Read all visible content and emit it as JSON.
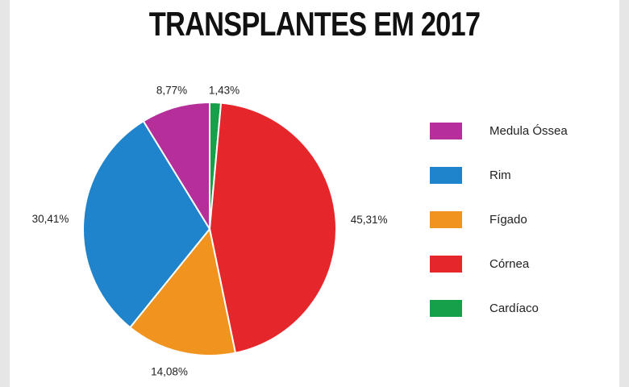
{
  "chart_data": {
    "type": "pie",
    "title": "TRANSPLANTES EM 2017",
    "legend_position": "right",
    "slices": [
      {
        "name": "Medula Óssea",
        "value": 8.77,
        "label": "8,77%",
        "color": "#b52e9a"
      },
      {
        "name": "Rim",
        "value": 30.41,
        "label": "30,41%",
        "color": "#1f84cc"
      },
      {
        "name": "Fígado",
        "value": 14.08,
        "label": "14,08%",
        "color": "#f0941f"
      },
      {
        "name": "Córnea",
        "value": 45.31,
        "label": "45,31%",
        "color": "#e5262a"
      },
      {
        "name": "Cardíaco",
        "value": 1.43,
        "label": "1,43%",
        "color": "#17a04a"
      }
    ],
    "slice_order": [
      "Cardíaco",
      "Córnea",
      "Fígado",
      "Rim",
      "Medula Óssea"
    ]
  }
}
